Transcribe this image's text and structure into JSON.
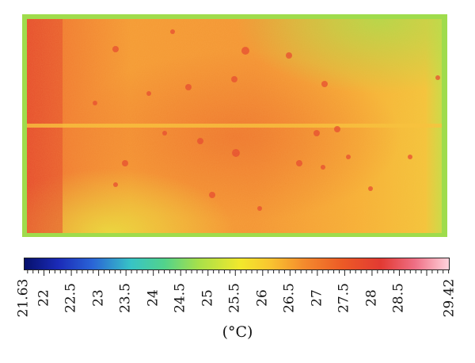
{
  "colorbar": {
    "min": 21.63,
    "max": 29.42,
    "tick_labels": [
      "21.63",
      "22",
      "22.5",
      "23",
      "23.5",
      "24",
      "24.5",
      "25",
      "25.5",
      "26",
      "26.5",
      "27",
      "27.5",
      "28",
      "28.5",
      "29.42"
    ],
    "unit_label": "(°C)",
    "colors": [
      "#06106b",
      "#2a64d6",
      "#37c3c6",
      "#52d38b",
      "#a7e04a",
      "#f3e82c",
      "#f48a2d",
      "#e23a33",
      "#ffd3dc"
    ]
  },
  "thermal_image": {
    "description_colors": {
      "hot": "#e84a2c",
      "warm": "#f6a530",
      "mild": "#f2d43a",
      "cool_edge": "#8fd94e"
    }
  }
}
